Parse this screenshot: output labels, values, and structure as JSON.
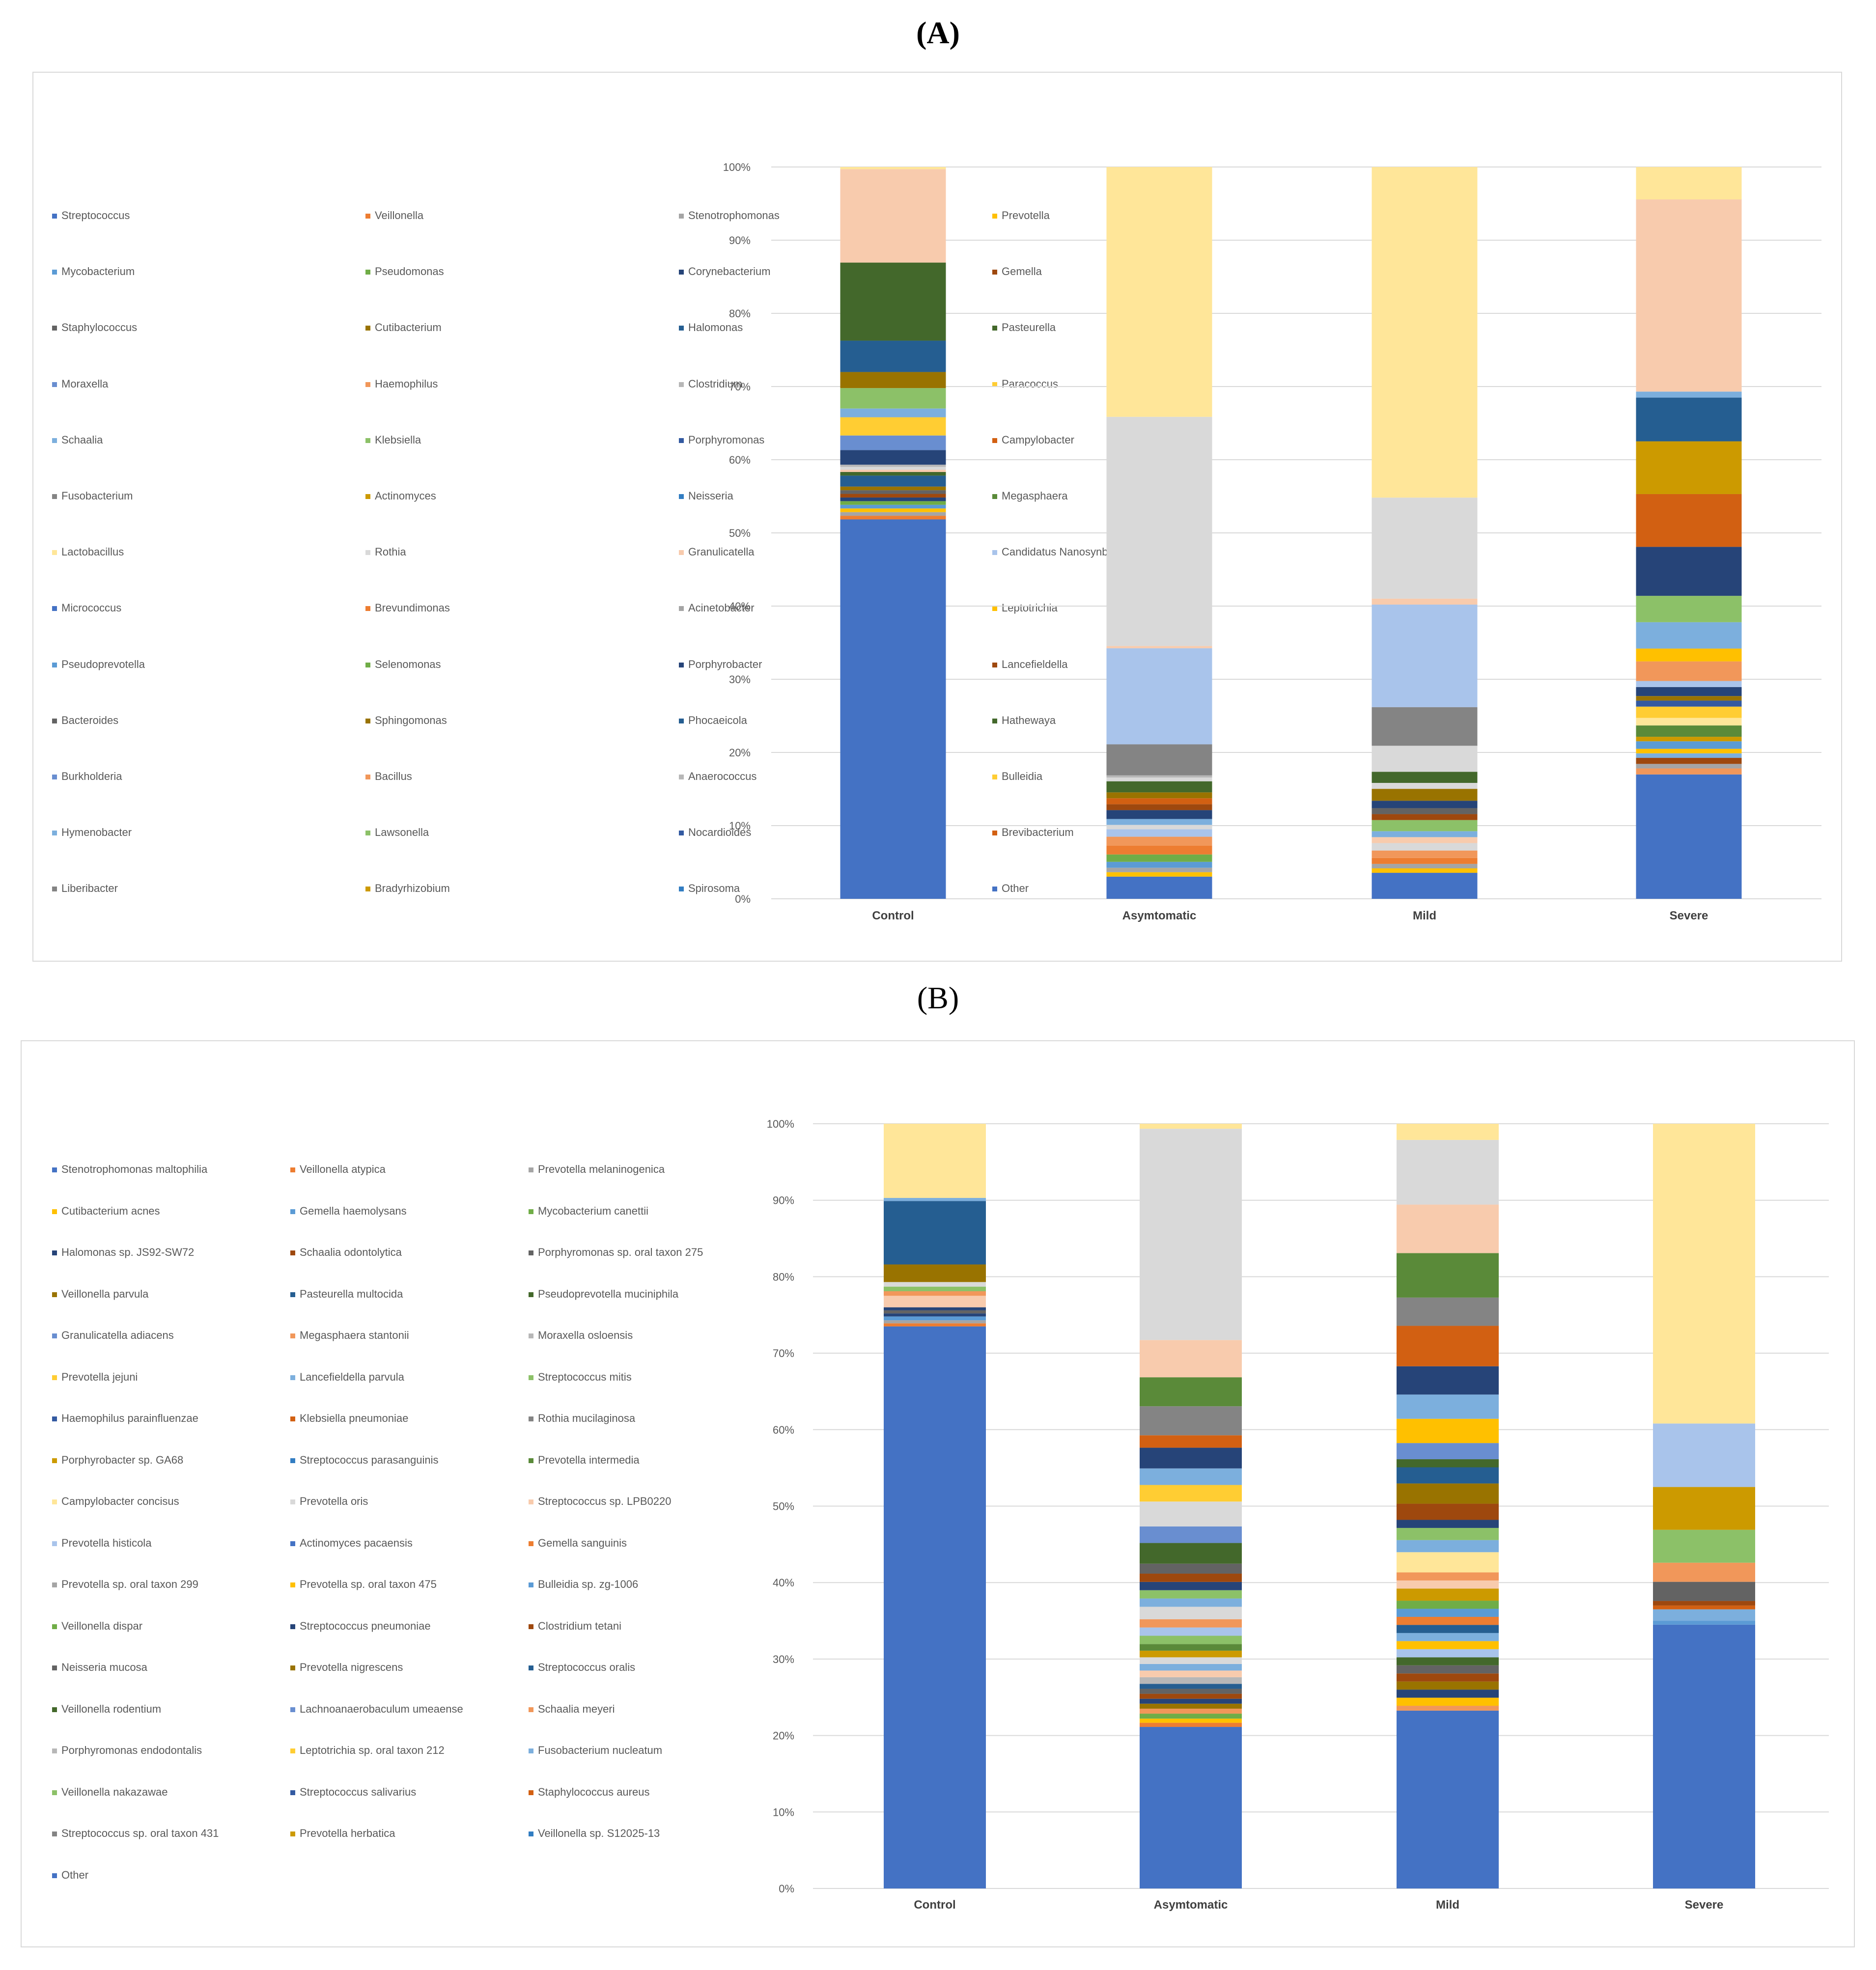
{
  "panel_labels": {
    "a": "(A)",
    "b": "(B)"
  },
  "colors": [
    "#4472C4",
    "#ED7D31",
    "#A5A5A5",
    "#FFC000",
    "#5B9BD5",
    "#70AD47",
    "#264478",
    "#9E480E",
    "#636363",
    "#997300",
    "#255E91",
    "#43682B",
    "#698ED0",
    "#F1975A",
    "#B7B7B7",
    "#FFCD33",
    "#7CAFDD",
    "#8CC168",
    "#335AA1",
    "#D26012",
    "#848484",
    "#CC9A00",
    "#327DC2",
    "#5A8A39",
    "#FFE699",
    "#D9D9D9",
    "#F8CBAD",
    "#A9C4EB"
  ],
  "chart_data": [
    {
      "type": "bar",
      "stacked": "percent",
      "categories": [
        "Control",
        "Asymtomatic",
        "Mild",
        "Severe"
      ],
      "y_ticks": [
        "0%",
        "10%",
        "20%",
        "30%",
        "40%",
        "50%",
        "60%",
        "70%",
        "80%",
        "90%",
        "100%"
      ],
      "ylim": [
        0,
        100
      ],
      "legend_placement": "left",
      "legend": [
        "Streptococcus",
        "Veillonella",
        "Stenotrophomonas",
        "Prevotella",
        "Mycobacterium",
        "Pseudomonas",
        "Corynebacterium",
        "Gemella",
        "Staphylococcus",
        "Cutibacterium",
        "Halomonas",
        "Pasteurella",
        "Moraxella",
        "Haemophilus",
        "Clostridium",
        "Paracoccus",
        "Schaalia",
        "Klebsiella",
        "Porphyromonas",
        "Campylobacter",
        "Fusobacterium",
        "Actinomyces",
        "Neisseria",
        "Megasphaera",
        "Lactobacillus",
        "Rothia",
        "Granulicatella",
        "Candidatus Nanosynbacter",
        "Micrococcus",
        "Brevundimonas",
        "Acinetobacter",
        "Leptotrichia",
        "Pseudoprevotella",
        "Selenomonas",
        "Porphyrobacter",
        "Lancefieldella",
        "Bacteroides",
        "Sphingomonas",
        "Phocaeicola",
        "Hathewaya",
        "Burkholderia",
        "Bacillus",
        "Anaerococcus",
        "Bulleidia",
        "Hymenobacter",
        "Lawsonella",
        "Nocardioides",
        "Brevibacterium",
        "Liberibacter",
        "Bradyrhizobium",
        "Spirosoma",
        "Other"
      ],
      "segments": [
        [
          {
            "v": 52,
            "c": "#4472C4"
          },
          {
            "v": 0.5,
            "c": "#ED7D31"
          },
          {
            "v": 0.5,
            "c": "#A5A5A5"
          },
          {
            "v": 0.5,
            "c": "#FFC000"
          },
          {
            "v": 0.5,
            "c": "#5B9BD5"
          },
          {
            "v": 0.5,
            "c": "#70AD47"
          },
          {
            "v": 0.5,
            "c": "#264478"
          },
          {
            "v": 0.5,
            "c": "#9E480E"
          },
          {
            "v": 0.5,
            "c": "#636363"
          },
          {
            "v": 0.5,
            "c": "#997300"
          },
          {
            "v": 1.5,
            "c": "#255E91"
          },
          {
            "v": 0.5,
            "c": "#43682B"
          },
          {
            "v": 0.3,
            "c": "#F8CBAD"
          },
          {
            "v": 0.4,
            "c": "#D9D9D9"
          },
          {
            "v": 0.3,
            "c": "#B7B7B7"
          },
          {
            "v": 2,
            "c": "#264478"
          },
          {
            "v": 2,
            "c": "#698ED0"
          },
          {
            "v": 2.5,
            "c": "#FFCD33"
          },
          {
            "v": 1.2,
            "c": "#7CAFDD"
          },
          {
            "v": 2.8,
            "c": "#8CC168"
          },
          {
            "v": 2.2,
            "c": "#997300"
          },
          {
            "v": 4.3,
            "c": "#255E91"
          },
          {
            "v": 10.7,
            "c": "#43682B"
          },
          {
            "v": 12.8,
            "c": "#F8CBAD"
          },
          {
            "v": 0.3,
            "c": "#FFE699"
          }
        ],
        [
          {
            "v": 3,
            "c": "#4472C4"
          },
          {
            "v": 0.6,
            "c": "#FFC000"
          },
          {
            "v": 0.6,
            "c": "#A5A5A5"
          },
          {
            "v": 0.8,
            "c": "#5B9BD5"
          },
          {
            "v": 1,
            "c": "#70AD47"
          },
          {
            "v": 1.2,
            "c": "#ED7D31"
          },
          {
            "v": 1.2,
            "c": "#F1975A"
          },
          {
            "v": 1,
            "c": "#A9C4EB"
          },
          {
            "v": 0.6,
            "c": "#D9D9D9"
          },
          {
            "v": 0.8,
            "c": "#7CAFDD"
          },
          {
            "v": 1.2,
            "c": "#264478"
          },
          {
            "v": 0.8,
            "c": "#9E480E"
          },
          {
            "v": 0.8,
            "c": "#D26012"
          },
          {
            "v": 0.8,
            "c": "#997300"
          },
          {
            "v": 1.5,
            "c": "#43682B"
          },
          {
            "v": 0.5,
            "c": "#D9D9D9"
          },
          {
            "v": 0.3,
            "c": "#B7B7B7"
          },
          {
            "v": 4.2,
            "c": "#848484"
          },
          {
            "v": 13,
            "c": "#A9C4EB"
          },
          {
            "v": 0.3,
            "c": "#F8CBAD"
          },
          {
            "v": 31,
            "c": "#D9D9D9"
          },
          {
            "v": 33.8,
            "c": "#FFE699"
          }
        ],
        [
          {
            "v": 3.5,
            "c": "#4472C4"
          },
          {
            "v": 0.6,
            "c": "#FFC000"
          },
          {
            "v": 0.6,
            "c": "#A5A5A5"
          },
          {
            "v": 0.8,
            "c": "#ED7D31"
          },
          {
            "v": 1,
            "c": "#F1975A"
          },
          {
            "v": 1,
            "c": "#D9D9D9"
          },
          {
            "v": 0.8,
            "c": "#F8CBAD"
          },
          {
            "v": 0.8,
            "c": "#7CAFDD"
          },
          {
            "v": 1.5,
            "c": "#8CC168"
          },
          {
            "v": 0.8,
            "c": "#9E480E"
          },
          {
            "v": 0.8,
            "c": "#636363"
          },
          {
            "v": 1,
            "c": "#264478"
          },
          {
            "v": 1.6,
            "c": "#997300"
          },
          {
            "v": 0.8,
            "c": "#D9D9D9"
          },
          {
            "v": 1.5,
            "c": "#43682B"
          },
          {
            "v": 3.5,
            "c": "#D9D9D9"
          },
          {
            "v": 5.2,
            "c": "#848484"
          },
          {
            "v": 13.8,
            "c": "#A9C4EB"
          },
          {
            "v": 0.8,
            "c": "#F8CBAD"
          },
          {
            "v": 13.6,
            "c": "#D9D9D9"
          },
          {
            "v": 44.5,
            "c": "#FFE699"
          }
        ],
        [
          {
            "v": 16.5,
            "c": "#4472C4"
          },
          {
            "v": 0.8,
            "c": "#F1975A"
          },
          {
            "v": 0.6,
            "c": "#A5A5A5"
          },
          {
            "v": 0.8,
            "c": "#9E480E"
          },
          {
            "v": 0.6,
            "c": "#7CAFDD"
          },
          {
            "v": 0.6,
            "c": "#FFC000"
          },
          {
            "v": 1,
            "c": "#5B9BD5"
          },
          {
            "v": 0.6,
            "c": "#CC9A00"
          },
          {
            "v": 1.5,
            "c": "#5A8A39"
          },
          {
            "v": 1,
            "c": "#FFE699"
          },
          {
            "v": 1.5,
            "c": "#FFCD33"
          },
          {
            "v": 0.8,
            "c": "#335AA1"
          },
          {
            "v": 0.6,
            "c": "#997300"
          },
          {
            "v": 1.2,
            "c": "#264478"
          },
          {
            "v": 0.8,
            "c": "#A9C4EB"
          },
          {
            "v": 2.6,
            "c": "#F1975A"
          },
          {
            "v": 1.7,
            "c": "#FFC000"
          },
          {
            "v": 3.5,
            "c": "#7CAFDD"
          },
          {
            "v": 3.5,
            "c": "#8CC168"
          },
          {
            "v": 6.5,
            "c": "#264478"
          },
          {
            "v": 7,
            "c": "#D26012"
          },
          {
            "v": 7,
            "c": "#CC9A00"
          },
          {
            "v": 5.8,
            "c": "#255E91"
          },
          {
            "v": 0.8,
            "c": "#7CAFDD"
          },
          {
            "v": 25.5,
            "c": "#F8CBAD"
          },
          {
            "v": 4.3,
            "c": "#FFE699"
          }
        ]
      ]
    },
    {
      "type": "bar",
      "stacked": "percent",
      "categories": [
        "Control",
        "Asymtomatic",
        "Mild",
        "Severe"
      ],
      "y_ticks": [
        "0%",
        "10%",
        "20%",
        "30%",
        "40%",
        "50%",
        "60%",
        "70%",
        "80%",
        "90%",
        "100%"
      ],
      "ylim": [
        0,
        100
      ],
      "legend_placement": "left",
      "legend": [
        "Stenotrophomonas maltophilia",
        "Veillonella atypica",
        "Prevotella melaninogenica",
        "Cutibacterium acnes",
        "Gemella haemolysans",
        "Mycobacterium canettii",
        "Halomonas sp. JS92-SW72",
        "Schaalia odontolytica",
        "Porphyromonas sp. oral taxon 275",
        "Veillonella parvula",
        "Pasteurella multocida",
        "Pseudoprevotella muciniphila",
        "Granulicatella adiacens",
        "Megasphaera stantonii",
        "Moraxella osloensis",
        "Prevotella jejuni",
        "Lancefieldella parvula",
        "Streptococcus mitis",
        "Haemophilus parainfluenzae",
        "Klebsiella pneumoniae",
        "Rothia mucilaginosa",
        "Porphyrobacter sp. GA68",
        "Streptococcus parasanguinis",
        "Prevotella intermedia",
        "Campylobacter concisus",
        "Prevotella oris",
        "Streptococcus sp. LPB0220",
        "Prevotella histicola",
        "Actinomyces pacaensis",
        "Gemella sanguinis",
        "Prevotella sp. oral taxon 299",
        "Prevotella sp. oral taxon 475",
        "Bulleidia sp. zg-1006",
        "Veillonella dispar",
        "Streptococcus pneumoniae",
        "Clostridium tetani",
        "Neisseria mucosa",
        "Prevotella nigrescens",
        "Streptococcus oralis",
        "Veillonella rodentium",
        "Lachnoanaerobaculum umeaense",
        "Schaalia meyeri",
        "Porphyromonas endodontalis",
        "Leptotrichia sp. oral taxon 212",
        "Fusobacterium nucleatum",
        "Veillonella nakazawae",
        "Streptococcus salivarius",
        "Staphylococcus aureus",
        "Streptococcus sp. oral taxon 431",
        "Prevotella herbatica",
        "Veillonella sp. S12025-13",
        "Other"
      ],
      "segments": [
        [
          {
            "v": 73.5,
            "c": "#4472C4"
          },
          {
            "v": 0.4,
            "c": "#ED7D31"
          },
          {
            "v": 0.4,
            "c": "#A5A5A5"
          },
          {
            "v": 0.5,
            "c": "#5B9BD5"
          },
          {
            "v": 0.4,
            "c": "#264478"
          },
          {
            "v": 0.4,
            "c": "#636363"
          },
          {
            "v": 0.4,
            "c": "#264478"
          },
          {
            "v": 1.5,
            "c": "#F8CBAD"
          },
          {
            "v": 0.6,
            "c": "#F1975A"
          },
          {
            "v": 0.6,
            "c": "#8CC168"
          },
          {
            "v": 0.6,
            "c": "#D9D9D9"
          },
          {
            "v": 2.3,
            "c": "#997300"
          },
          {
            "v": 8.3,
            "c": "#255E91"
          },
          {
            "v": 0.4,
            "c": "#7CAFDD"
          },
          {
            "v": 9.7,
            "c": "#FFE699"
          }
        ],
        [
          {
            "v": 19.5,
            "c": "#4472C4"
          },
          {
            "v": 0.5,
            "c": "#ED7D31"
          },
          {
            "v": 0.5,
            "c": "#FFC000"
          },
          {
            "v": 0.6,
            "c": "#70AD47"
          },
          {
            "v": 0.6,
            "c": "#F1975A"
          },
          {
            "v": 0.6,
            "c": "#997300"
          },
          {
            "v": 0.6,
            "c": "#264478"
          },
          {
            "v": 0.6,
            "c": "#9E480E"
          },
          {
            "v": 0.6,
            "c": "#636363"
          },
          {
            "v": 0.6,
            "c": "#255E91"
          },
          {
            "v": 0.8,
            "c": "#B7B7B7"
          },
          {
            "v": 0.8,
            "c": "#F8CBAD"
          },
          {
            "v": 0.8,
            "c": "#7CAFDD"
          },
          {
            "v": 0.8,
            "c": "#D9D9D9"
          },
          {
            "v": 0.8,
            "c": "#CC9A00"
          },
          {
            "v": 0.8,
            "c": "#5A8A39"
          },
          {
            "v": 1,
            "c": "#8CC168"
          },
          {
            "v": 1,
            "c": "#A9C4EB"
          },
          {
            "v": 1,
            "c": "#F1975A"
          },
          {
            "v": 1.5,
            "c": "#D9D9D9"
          },
          {
            "v": 1,
            "c": "#7CAFDD"
          },
          {
            "v": 1,
            "c": "#8CC168"
          },
          {
            "v": 1,
            "c": "#264478"
          },
          {
            "v": 1,
            "c": "#9E480E"
          },
          {
            "v": 1.2,
            "c": "#636363"
          },
          {
            "v": 2.5,
            "c": "#43682B"
          },
          {
            "v": 2,
            "c": "#698ED0"
          },
          {
            "v": 3,
            "c": "#D9D9D9"
          },
          {
            "v": 2,
            "c": "#FFCD33"
          },
          {
            "v": 2,
            "c": "#7CAFDD"
          },
          {
            "v": 2.5,
            "c": "#264478"
          },
          {
            "v": 1.5,
            "c": "#D26012"
          },
          {
            "v": 3.5,
            "c": "#848484"
          },
          {
            "v": 3.5,
            "c": "#5A8A39"
          },
          {
            "v": 4.5,
            "c": "#F8CBAD"
          },
          {
            "v": 25.5,
            "c": "#D9D9D9"
          },
          {
            "v": 0.6,
            "c": "#FFE699"
          }
        ],
        [
          {
            "v": 22,
            "c": "#4472C4"
          },
          {
            "v": 0.6,
            "c": "#F1975A"
          },
          {
            "v": 1,
            "c": "#FFC000"
          },
          {
            "v": 1,
            "c": "#264478"
          },
          {
            "v": 1,
            "c": "#997300"
          },
          {
            "v": 1,
            "c": "#9E480E"
          },
          {
            "v": 1,
            "c": "#636363"
          },
          {
            "v": 1,
            "c": "#43682B"
          },
          {
            "v": 1,
            "c": "#A9C4EB"
          },
          {
            "v": 1,
            "c": "#FFC000"
          },
          {
            "v": 1,
            "c": "#7CAFDD"
          },
          {
            "v": 1,
            "c": "#255E91"
          },
          {
            "v": 1,
            "c": "#ED7D31"
          },
          {
            "v": 1,
            "c": "#5B9BD5"
          },
          {
            "v": 1,
            "c": "#70AD47"
          },
          {
            "v": 1.5,
            "c": "#CC9A00"
          },
          {
            "v": 1,
            "c": "#F8CBAD"
          },
          {
            "v": 1,
            "c": "#F1975A"
          },
          {
            "v": 2.5,
            "c": "#FFE699"
          },
          {
            "v": 1.5,
            "c": "#7CAFDD"
          },
          {
            "v": 1.5,
            "c": "#8CC168"
          },
          {
            "v": 1,
            "c": "#264478"
          },
          {
            "v": 2,
            "c": "#9E480E"
          },
          {
            "v": 2.5,
            "c": "#997300"
          },
          {
            "v": 2,
            "c": "#255E91"
          },
          {
            "v": 1,
            "c": "#43682B"
          },
          {
            "v": 2,
            "c": "#698ED0"
          },
          {
            "v": 3,
            "c": "#FFC000"
          },
          {
            "v": 3,
            "c": "#7CAFDD"
          },
          {
            "v": 3.5,
            "c": "#264478"
          },
          {
            "v": 5,
            "c": "#D26012"
          },
          {
            "v": 3.5,
            "c": "#848484"
          },
          {
            "v": 5.5,
            "c": "#5A8A39"
          },
          {
            "v": 6,
            "c": "#F8CBAD"
          },
          {
            "v": 8,
            "c": "#D9D9D9"
          },
          {
            "v": 2,
            "c": "#FFE699"
          }
        ],
        [
          {
            "v": 34.5,
            "c": "#4472C4"
          },
          {
            "v": 0.5,
            "c": "#5B9BD5"
          },
          {
            "v": 1.5,
            "c": "#7CAFDD"
          },
          {
            "v": 0.5,
            "c": "#D26012"
          },
          {
            "v": 0.6,
            "c": "#9E480E"
          },
          {
            "v": 2.5,
            "c": "#636363"
          },
          {
            "v": 2.5,
            "c": "#F1975A"
          },
          {
            "v": 4.3,
            "c": "#8CC168"
          },
          {
            "v": 5.6,
            "c": "#CC9A00"
          },
          {
            "v": 8.3,
            "c": "#A9C4EB"
          },
          {
            "v": 39.2,
            "c": "#FFE699"
          }
        ]
      ]
    }
  ]
}
